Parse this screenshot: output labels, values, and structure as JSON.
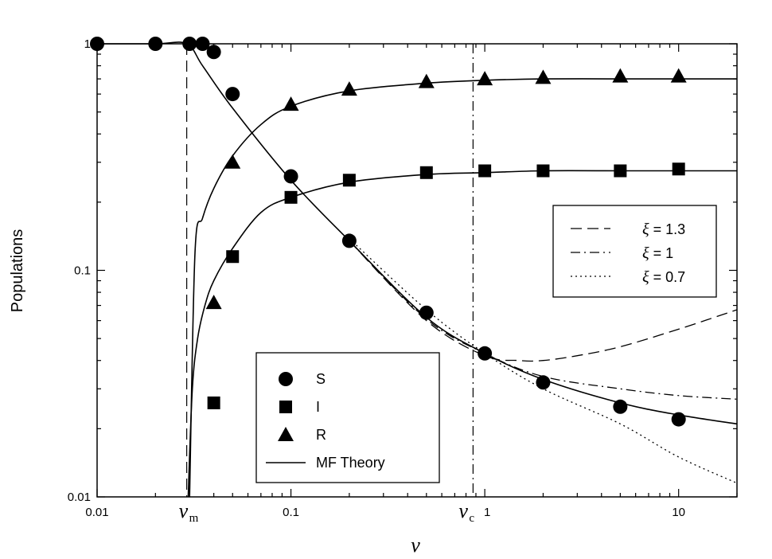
{
  "chart_data": {
    "type": "scatter",
    "xlabel": "ν",
    "ylabel": "Populations",
    "xscale": "log",
    "yscale": "log",
    "xlim": [
      0.01,
      20
    ],
    "ylim": [
      0.01,
      1
    ],
    "xticks": [
      {
        "value": 0.01,
        "label": "0.01"
      },
      {
        "value": 0.1,
        "label": "0.1"
      },
      {
        "value": 1,
        "label": "1"
      },
      {
        "value": 10,
        "label": "10"
      }
    ],
    "yticks": [
      {
        "value": 0.01,
        "label": "0.01"
      },
      {
        "value": 0.1,
        "label": "0.1"
      },
      {
        "value": 1,
        "label": "1"
      }
    ],
    "markers": [
      {
        "name": "ν_m",
        "label": "ν",
        "sub": "m",
        "x": 0.029,
        "style": "dashed"
      },
      {
        "name": "ν_c",
        "label": "ν",
        "sub": "c",
        "x": 0.87,
        "style": "dashdot"
      }
    ],
    "series": [
      {
        "name": "S",
        "marker": "circle",
        "x": [
          0.01,
          0.02,
          0.03,
          0.035,
          0.04,
          0.05,
          0.1,
          0.2,
          0.5,
          1,
          2,
          5,
          10
        ],
        "y": [
          1,
          1,
          1,
          1,
          0.92,
          0.6,
          0.26,
          0.135,
          0.065,
          0.043,
          0.032,
          0.025,
          0.022
        ]
      },
      {
        "name": "I",
        "marker": "square",
        "x": [
          0.04,
          0.05,
          0.1,
          0.2,
          0.5,
          1,
          2,
          5,
          10
        ],
        "y": [
          0.026,
          0.115,
          0.21,
          0.25,
          0.27,
          0.275,
          0.275,
          0.275,
          0.28
        ]
      },
      {
        "name": "R",
        "marker": "triangle",
        "x": [
          0.04,
          0.05,
          0.1,
          0.2,
          0.5,
          1,
          2,
          5,
          10
        ],
        "y": [
          0.072,
          0.3,
          0.54,
          0.63,
          0.68,
          0.7,
          0.71,
          0.72,
          0.72
        ]
      }
    ],
    "theory_curves": [
      {
        "name": "MF Theory",
        "style": "solid",
        "role": "S",
        "x": [
          0.01,
          0.02,
          0.029,
          0.035,
          0.05,
          0.1,
          0.2,
          0.5,
          1,
          2,
          5,
          10,
          20
        ],
        "y": [
          1,
          1,
          1,
          0.8,
          0.52,
          0.25,
          0.135,
          0.062,
          0.043,
          0.033,
          0.026,
          0.023,
          0.021
        ]
      },
      {
        "name": "MF Theory",
        "style": "solid",
        "role": "R",
        "x": [
          0.03,
          0.032,
          0.035,
          0.04,
          0.05,
          0.07,
          0.1,
          0.2,
          0.5,
          1,
          2,
          5,
          10,
          20
        ],
        "y": [
          0.01,
          0.12,
          0.17,
          0.23,
          0.32,
          0.44,
          0.53,
          0.62,
          0.67,
          0.69,
          0.7,
          0.7,
          0.7,
          0.7
        ]
      },
      {
        "name": "MF Theory",
        "style": "solid",
        "role": "I",
        "x": [
          0.0295,
          0.031,
          0.033,
          0.036,
          0.04,
          0.05,
          0.07,
          0.1,
          0.2,
          0.5,
          1,
          2,
          5,
          10,
          20
        ],
        "y": [
          0.01,
          0.03,
          0.05,
          0.07,
          0.09,
          0.125,
          0.18,
          0.21,
          0.245,
          0.265,
          0.27,
          0.275,
          0.275,
          0.275,
          0.275
        ]
      },
      {
        "name": "ξ = 1.3",
        "style": "dashed",
        "role": "S",
        "x": [
          0.2,
          0.5,
          1,
          1.5,
          2,
          3,
          5,
          10,
          20
        ],
        "y": [
          0.135,
          0.06,
          0.042,
          0.04,
          0.04,
          0.042,
          0.046,
          0.055,
          0.067
        ]
      },
      {
        "name": "ξ = 1",
        "style": "dashdot",
        "role": "S",
        "x": [
          0.2,
          0.5,
          1,
          2,
          5,
          10,
          20
        ],
        "y": [
          0.135,
          0.061,
          0.043,
          0.034,
          0.03,
          0.028,
          0.027
        ]
      },
      {
        "name": "ξ = 0.7",
        "style": "dotted",
        "role": "S",
        "x": [
          0.2,
          0.5,
          1,
          2,
          5,
          10,
          20
        ],
        "y": [
          0.138,
          0.067,
          0.043,
          0.03,
          0.021,
          0.015,
          0.0115
        ]
      }
    ],
    "legend_markers": [
      {
        "label": "S",
        "marker": "circle"
      },
      {
        "label": "I",
        "marker": "square"
      },
      {
        "label": "R",
        "marker": "triangle"
      },
      {
        "label": "MF Theory",
        "marker": "line-solid"
      }
    ],
    "legend_xi": [
      {
        "symbol": "ξ",
        "value": " = 1.3",
        "style": "dashed"
      },
      {
        "symbol": "ξ",
        "value": " = 1",
        "style": "dashdot"
      },
      {
        "symbol": "ξ",
        "value": " = 0.7",
        "style": "dotted"
      }
    ],
    "legend_markers_position": "bottom-center",
    "legend_xi_position": "right"
  }
}
